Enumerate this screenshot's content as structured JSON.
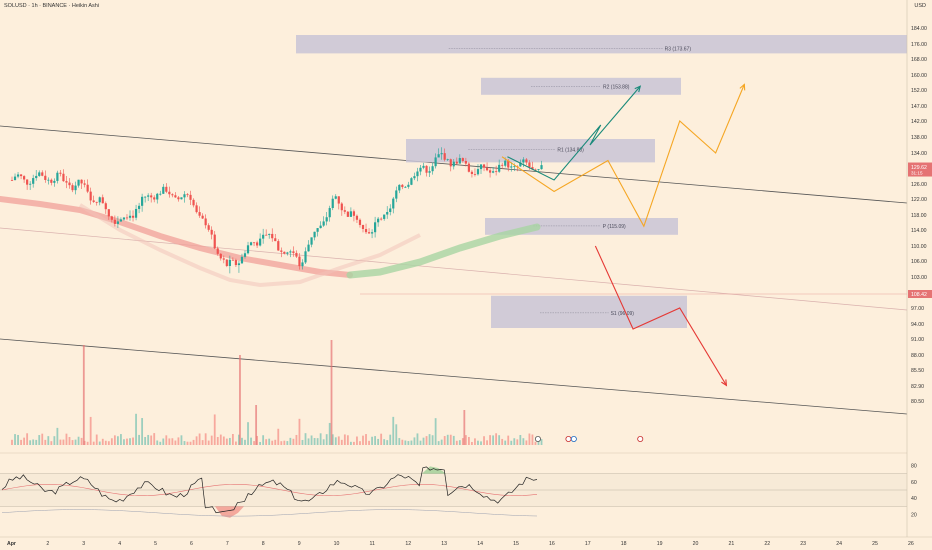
{
  "header": {
    "symbol_line": "SOLUSD · 1h · BINANCE · Heikin Ashi",
    "currency": "USD"
  },
  "price_axis": {
    "ticks": [
      "184.00",
      "176.00",
      "168.00",
      "160.00",
      "152.00",
      "147.00",
      "142.00",
      "138.00",
      "134.00",
      "130.00",
      "126.00",
      "122.00",
      "118.00",
      "114.00",
      "110.00",
      "106.00",
      "103.00",
      "100.00",
      "97.00",
      "94.00",
      "91.00",
      "88.00",
      "85.50",
      "82.90",
      "80.50"
    ],
    "current_price_label": "129.62",
    "current_price_sublabel": "31:15",
    "level_label": "108.42"
  },
  "rsi_axis": {
    "ticks": [
      "80",
      "60",
      "40",
      "20"
    ]
  },
  "time_axis": {
    "labels": [
      "Apr",
      "2",
      "3",
      "4",
      "5",
      "6",
      "7",
      "8",
      "9",
      "10",
      "11",
      "12",
      "13",
      "14",
      "15",
      "16",
      "17",
      "18",
      "19",
      "20",
      "21",
      "22",
      "23",
      "24",
      "25",
      "26"
    ]
  },
  "pivot_zones": [
    {
      "name": "R3",
      "label": "R3 (173.67)",
      "value": 173.67,
      "zone_low": 171,
      "zone_high": 180.5
    },
    {
      "name": "R2",
      "label": "R2 (153.88)",
      "value": 153.88,
      "zone_low": 150.5,
      "zone_high": 158.5
    },
    {
      "name": "R1",
      "label": "R1 (134.88)",
      "value": 134.88,
      "zone_low": 131.5,
      "zone_high": 137.5
    },
    {
      "name": "P",
      "label": "P (115.09)",
      "value": 115.09,
      "zone_low": 112.8,
      "zone_high": 117.2
    },
    {
      "name": "S1",
      "label": "S1 (96.09)",
      "value": 96.09,
      "zone_low": 93.2,
      "zone_high": 99.3
    }
  ],
  "colors": {
    "background": "#fdefdc",
    "up_candle": "#26a69a",
    "down_candle": "#ef5350",
    "zone": "#c9c4d6",
    "scenario_bullish": "#1a8a7a",
    "scenario_neutral": "#f5a623",
    "scenario_bearish": "#e53935",
    "price_tag": "#e57373",
    "rsi_line": "#222222",
    "rsi_ma": "#e57373"
  },
  "chart_data": {
    "type": "line",
    "title": "SOLUSD · 1h · BINANCE · Heikin Ashi",
    "y_unit": "USD",
    "candles_close_by_day": {
      "x": [
        "Apr 1",
        "Apr 2",
        "Apr 3",
        "Apr 4",
        "Apr 5",
        "Apr 6",
        "Apr 7",
        "Apr 8",
        "Apr 9",
        "Apr 10",
        "Apr 11",
        "Apr 12",
        "Apr 13",
        "Apr 14",
        "Apr 15",
        "Apr 15 end"
      ],
      "y": [
        127,
        128,
        125,
        116,
        124,
        122,
        104,
        113,
        106,
        122,
        113,
        127,
        133,
        129,
        131,
        129.6
      ]
    },
    "projection_paths": [
      {
        "color": "#1a8a7a",
        "x": [
          "Apr 15",
          "Apr 16",
          "Apr 17",
          "Apr 17",
          "Apr 18"
        ],
        "y": [
          133,
          127,
          141,
          136,
          154
        ]
      },
      {
        "color": "#f5a623",
        "x": [
          "Apr 15",
          "Apr 16",
          "Apr 17",
          "Apr 18",
          "Apr 19",
          "Apr 20",
          "Apr 21"
        ],
        "y": [
          133,
          124,
          132,
          115,
          142,
          134,
          155
        ]
      },
      {
        "color": "#e53935",
        "x": [
          "Apr 17",
          "Apr 18",
          "Apr 19",
          "Apr 19",
          "Apr 20"
        ],
        "y": [
          110,
          93,
          97,
          97,
          83
        ]
      }
    ],
    "rsi": {
      "ticks": [
        80,
        60,
        40,
        20
      ],
      "current_approx": 48
    }
  }
}
